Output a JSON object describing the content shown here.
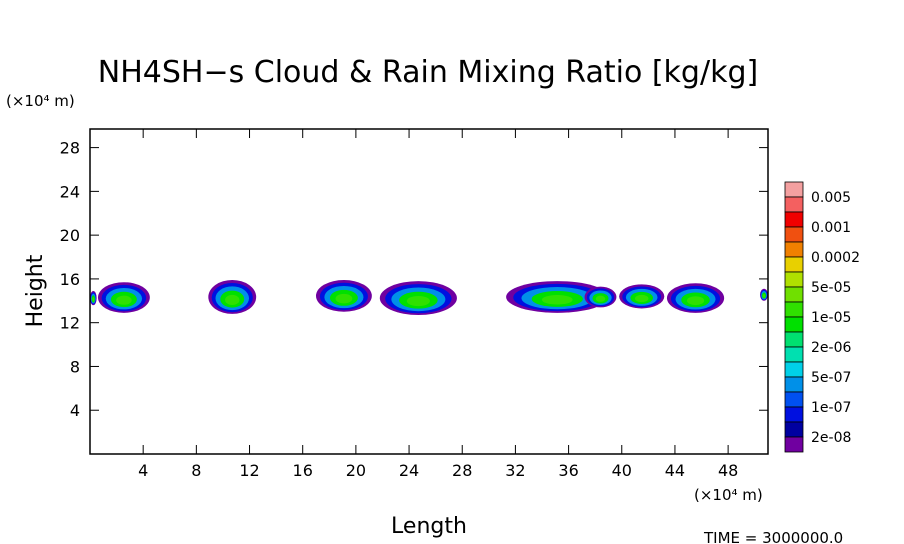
{
  "chart_data": {
    "type": "contour",
    "title": "NH4SH−s Cloud & Rain Mixing Ratio [kg/kg]",
    "x_label": "Length",
    "y_label": "Height",
    "x_unit": "(×10⁴ m)",
    "y_unit": "(×10⁴ m)",
    "footer": "TIME = 3000000.0",
    "xlim": [
      0,
      51
    ],
    "ylim": [
      0,
      29.7
    ],
    "xticks": [
      4,
      8,
      12,
      16,
      20,
      24,
      28,
      32,
      36,
      40,
      44,
      48
    ],
    "yticks": [
      4,
      8,
      12,
      16,
      20,
      24,
      28
    ],
    "colorbar": {
      "labels": [
        "0.005",
        "0.001",
        "0.0002",
        "5e-05",
        "1e-05",
        "2e-06",
        "5e-07",
        "1e-07",
        "2e-08"
      ],
      "colors": [
        "#f4a0a0",
        "#f46060",
        "#f00000",
        "#f05010",
        "#f08000",
        "#e8d000",
        "#b0e000",
        "#70e000",
        "#30e000",
        "#00e000",
        "#00e070",
        "#00e0b0",
        "#00d0e8",
        "#0090e8",
        "#0050f0",
        "#0010e0",
        "#0000a0",
        "#7000a0"
      ]
    },
    "cells": [
      {
        "x": [
          0,
          0.5
        ],
        "y": [
          13.6,
          14.9
        ]
      },
      {
        "x": [
          0.6,
          4.5
        ],
        "y": [
          12.9,
          15.7
        ]
      },
      {
        "x": [
          8.9,
          12.5
        ],
        "y": [
          12.8,
          15.9
        ]
      },
      {
        "x": [
          17,
          21.2
        ],
        "y": [
          13,
          15.9
        ]
      },
      {
        "x": [
          21.8,
          27.6
        ],
        "y": [
          12.7,
          15.8
        ]
      },
      {
        "x": [
          31.3,
          39
        ],
        "y": [
          12.9,
          15.8
        ]
      },
      {
        "x": [
          37.2,
          39.6
        ],
        "y": [
          13.4,
          15.3
        ]
      },
      {
        "x": [
          39.8,
          43.2
        ],
        "y": [
          13.3,
          15.5
        ]
      },
      {
        "x": [
          43.4,
          47.7
        ],
        "y": [
          12.9,
          15.6
        ]
      },
      {
        "x": [
          50.4,
          51
        ],
        "y": [
          14,
          15.1
        ]
      }
    ]
  }
}
